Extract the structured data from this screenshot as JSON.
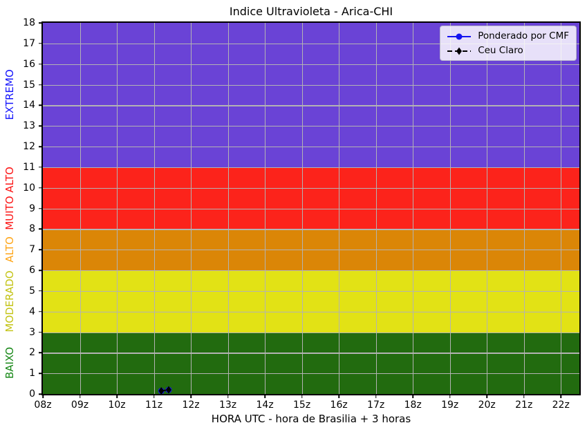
{
  "figure": {
    "title": "Indice Ultravioleta - Arica-CHI"
  },
  "chart_data": {
    "type": "line",
    "title": "Indice Ultravioleta - Arica-CHI",
    "xlabel": "HORA UTC - hora de Brasilia + 3 horas",
    "ylabel": "",
    "xlim": [
      8,
      22.5
    ],
    "ylim": [
      0,
      18
    ],
    "grid": true,
    "grid_color": "#b3b3b3",
    "x_ticks": [
      {
        "value": 8,
        "label": "08z"
      },
      {
        "value": 9,
        "label": "09z"
      },
      {
        "value": 10,
        "label": "10z"
      },
      {
        "value": 11,
        "label": "11z"
      },
      {
        "value": 12,
        "label": "12z"
      },
      {
        "value": 13,
        "label": "13z"
      },
      {
        "value": 14,
        "label": "14z"
      },
      {
        "value": 15,
        "label": "15z"
      },
      {
        "value": 16,
        "label": "16z"
      },
      {
        "value": 17,
        "label": "17z"
      },
      {
        "value": 18,
        "label": "18z"
      },
      {
        "value": 19,
        "label": "19z"
      },
      {
        "value": 20,
        "label": "20z"
      },
      {
        "value": 21,
        "label": "21z"
      },
      {
        "value": 22,
        "label": "22z"
      }
    ],
    "y_ticks": [
      0,
      1,
      2,
      3,
      4,
      5,
      6,
      7,
      8,
      9,
      10,
      11,
      12,
      13,
      14,
      15,
      16,
      17,
      18
    ],
    "bands": [
      {
        "name": "BAIXO",
        "from": 0,
        "to": 3,
        "color": "#226b0f",
        "label_color": "#168716"
      },
      {
        "name": "MODERADO",
        "from": 3,
        "to": 6,
        "color": "#e2e215",
        "label_color": "#c3c314"
      },
      {
        "name": "ALTO",
        "from": 6,
        "to": 8,
        "color": "#db8607",
        "label_color": "#ffa516"
      },
      {
        "name": "MUITO ALTO",
        "from": 8,
        "to": 11,
        "color": "#fc231b",
        "label_color": "#fc1414"
      },
      {
        "name": "EXTREMO",
        "from": 11,
        "to": 18,
        "color": "#6a43d6",
        "label_color": "#1414fc"
      }
    ],
    "series": [
      {
        "name": "Ponderado por CMF",
        "color": "#1414f0",
        "line": "solid",
        "marker": "circle",
        "points": [
          [
            11.2,
            0.15
          ],
          [
            11.4,
            0.2
          ]
        ]
      },
      {
        "name": "Ceu Claro",
        "color": "#000000",
        "line": "dashed",
        "marker": "diamond",
        "points": [
          [
            11.2,
            0.15
          ],
          [
            11.4,
            0.2
          ]
        ]
      }
    ],
    "legend": {
      "position": "top-right"
    }
  }
}
